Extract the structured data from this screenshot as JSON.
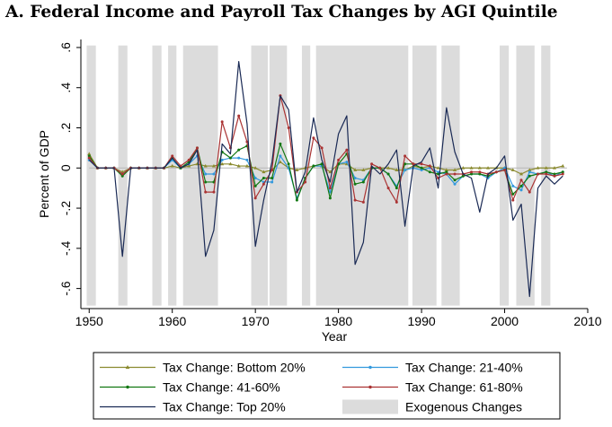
{
  "chart_data": {
    "type": "line",
    "title": "A. Federal Income and Payroll Tax Changes by AGI Quintile",
    "xlabel": "Year",
    "ylabel": "Percent of GDP",
    "xlim": [
      1949,
      2010
    ],
    "ylim": [
      -0.7,
      0.64
    ],
    "xticks": [
      1950,
      1960,
      1970,
      1980,
      1990,
      2000,
      2010
    ],
    "yticks": [
      -0.6,
      -0.4,
      -0.2,
      0,
      0.2,
      0.4,
      0.6
    ],
    "ytick_labels": [
      "-.6",
      "-.4",
      "-.2",
      "0",
      ".2",
      ".4",
      ".6"
    ],
    "grid": false,
    "legend_position": "bottom",
    "exogenous_changes": [
      [
        1949.7,
        1950.8
      ],
      [
        1953.5,
        1954.6
      ],
      [
        1957.6,
        1958.7
      ],
      [
        1959.5,
        1960.5
      ],
      [
        1961.3,
        1965.5
      ],
      [
        1969.5,
        1971.5
      ],
      [
        1971.7,
        1973.8
      ],
      [
        1975.6,
        1976.6
      ],
      [
        1977.3,
        1988.4
      ],
      [
        1988.9,
        1991.8
      ],
      [
        1992.4,
        1994.6
      ],
      [
        1999.4,
        2000.5
      ],
      [
        2001.4,
        2003.6
      ],
      [
        2004.4,
        2005.5
      ]
    ],
    "x": [
      1950,
      1951,
      1952,
      1953,
      1954,
      1955,
      1956,
      1957,
      1958,
      1959,
      1960,
      1961,
      1962,
      1963,
      1964,
      1965,
      1966,
      1967,
      1968,
      1969,
      1970,
      1971,
      1972,
      1973,
      1974,
      1975,
      1976,
      1977,
      1978,
      1979,
      1980,
      1981,
      1982,
      1983,
      1984,
      1985,
      1986,
      1987,
      1988,
      1989,
      1990,
      1991,
      1992,
      1993,
      1994,
      1995,
      1996,
      1997,
      1998,
      1999,
      2000,
      2001,
      2002,
      2003,
      2004,
      2005,
      2006,
      2007
    ],
    "series": [
      {
        "name": "Tax Change: Bottom 20%",
        "color": "#8a8a2e",
        "marker": "triangle",
        "values": [
          0.07,
          0.0,
          0.0,
          0.0,
          -0.02,
          0.0,
          0.0,
          0.0,
          0.0,
          0.0,
          0.01,
          0.0,
          0.01,
          0.02,
          0.01,
          0.01,
          0.02,
          0.02,
          0.01,
          0.01,
          0.0,
          -0.02,
          -0.01,
          0.03,
          0.0,
          -0.01,
          0.0,
          0.01,
          0.01,
          -0.02,
          0.02,
          0.02,
          -0.01,
          -0.01,
          0.0,
          0.0,
          0.0,
          -0.01,
          -0.01,
          0.01,
          0.0,
          0.01,
          0.0,
          -0.01,
          -0.01,
          0.0,
          0.0,
          0.0,
          0.0,
          0.0,
          0.0,
          -0.01,
          -0.03,
          -0.01,
          0.0,
          0.0,
          0.0,
          0.01
        ]
      },
      {
        "name": "Tax Change: 21-40%",
        "color": "#3399dd",
        "marker": "dot",
        "values": [
          0.04,
          0.0,
          0.0,
          0.0,
          -0.03,
          0.0,
          0.0,
          0.0,
          0.0,
          0.0,
          0.04,
          0.0,
          0.02,
          0.06,
          -0.03,
          -0.03,
          0.04,
          0.05,
          0.05,
          0.04,
          -0.05,
          -0.07,
          -0.07,
          0.06,
          0.0,
          -0.15,
          -0.05,
          0.01,
          0.01,
          -0.12,
          0.02,
          0.03,
          -0.05,
          -0.06,
          0.0,
          0.0,
          -0.03,
          -0.09,
          -0.01,
          0.0,
          -0.01,
          0.0,
          -0.02,
          -0.03,
          -0.08,
          -0.04,
          -0.03,
          -0.03,
          -0.05,
          -0.02,
          0.0,
          -0.09,
          -0.11,
          -0.02,
          -0.03,
          -0.02,
          -0.04,
          -0.02
        ]
      },
      {
        "name": "Tax Change: 41-60%",
        "color": "#117711",
        "marker": "dot",
        "values": [
          0.06,
          0.0,
          0.0,
          0.0,
          -0.04,
          0.0,
          0.0,
          0.0,
          0.0,
          0.0,
          0.05,
          0.0,
          0.03,
          0.1,
          -0.07,
          -0.07,
          0.08,
          0.05,
          0.09,
          0.11,
          -0.09,
          -0.05,
          -0.05,
          0.12,
          0.02,
          -0.16,
          -0.05,
          0.01,
          0.02,
          -0.15,
          0.02,
          0.07,
          -0.08,
          -0.07,
          0.0,
          0.0,
          -0.03,
          -0.1,
          0.02,
          0.02,
          0.0,
          -0.02,
          -0.03,
          -0.02,
          -0.06,
          -0.04,
          -0.03,
          -0.03,
          -0.04,
          -0.02,
          -0.01,
          -0.13,
          -0.09,
          -0.04,
          -0.03,
          -0.02,
          -0.03,
          -0.02
        ]
      },
      {
        "name": "Tax Change: 61-80%",
        "color": "#aa3333",
        "marker": "dot",
        "values": [
          0.05,
          0.0,
          0.0,
          0.0,
          -0.03,
          0.0,
          0.0,
          0.0,
          0.0,
          0.0,
          0.06,
          0.01,
          0.04,
          0.1,
          -0.12,
          -0.12,
          0.23,
          0.1,
          0.26,
          0.13,
          -0.15,
          -0.08,
          -0.01,
          0.36,
          0.2,
          -0.12,
          -0.07,
          0.15,
          0.1,
          -0.1,
          0.04,
          0.09,
          -0.16,
          -0.17,
          0.02,
          0.0,
          -0.1,
          -0.17,
          0.06,
          0.02,
          0.02,
          0.01,
          -0.05,
          -0.03,
          -0.03,
          -0.03,
          -0.02,
          -0.02,
          -0.03,
          -0.02,
          -0.01,
          -0.16,
          -0.06,
          -0.12,
          -0.03,
          -0.03,
          -0.04,
          -0.03
        ]
      },
      {
        "name": "Tax Change: Top 20%",
        "color": "#1a2a55",
        "marker": "none",
        "values": [
          0.04,
          0.0,
          0.0,
          0.0,
          -0.44,
          0.0,
          0.0,
          0.0,
          0.0,
          0.0,
          0.05,
          0.0,
          0.02,
          0.09,
          -0.44,
          -0.31,
          0.12,
          0.07,
          0.53,
          0.22,
          -0.39,
          -0.16,
          0.03,
          0.36,
          0.29,
          -0.12,
          -0.02,
          0.25,
          0.04,
          -0.07,
          0.17,
          0.26,
          -0.48,
          -0.37,
          0.01,
          -0.03,
          0.02,
          0.09,
          -0.29,
          0.01,
          0.03,
          0.1,
          -0.1,
          0.3,
          0.08,
          -0.03,
          -0.05,
          -0.22,
          -0.03,
          0.0,
          0.06,
          -0.26,
          -0.18,
          -0.64,
          -0.1,
          -0.04,
          -0.08,
          -0.04
        ]
      }
    ],
    "legend": [
      {
        "label": "Tax Change: Bottom 20%",
        "kind": "line",
        "color": "#8a8a2e",
        "marker": "triangle"
      },
      {
        "label": "Tax Change: 21-40%",
        "kind": "line",
        "color": "#3399dd",
        "marker": "dot"
      },
      {
        "label": "Tax Change: 41-60%",
        "kind": "line",
        "color": "#117711",
        "marker": "dot"
      },
      {
        "label": "Tax Change: 61-80%",
        "kind": "line",
        "color": "#aa3333",
        "marker": "dot"
      },
      {
        "label": "Tax Change: Top 20%",
        "kind": "line",
        "color": "#1a2a55",
        "marker": "none"
      },
      {
        "label": "Exogenous Changes",
        "kind": "box",
        "color": "#dcdcdc"
      }
    ]
  }
}
